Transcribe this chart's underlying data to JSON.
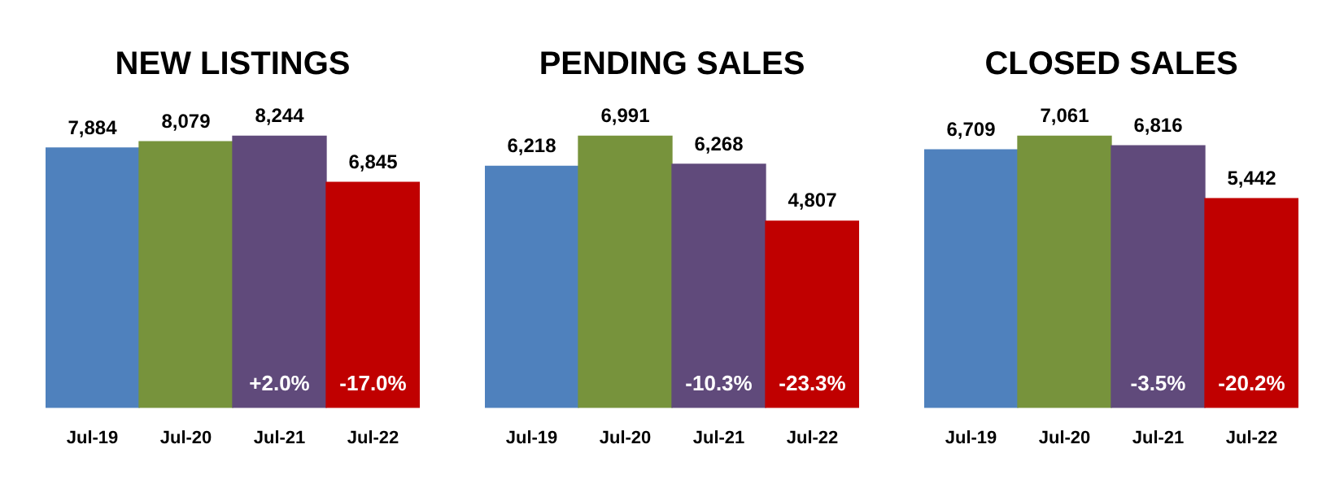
{
  "chart_data": [
    {
      "type": "bar",
      "title": "NEW LISTINGS",
      "categories": [
        "Jul-19",
        "Jul-20",
        "Jul-21",
        "Jul-22"
      ],
      "values": [
        7884,
        8079,
        8244,
        6845
      ],
      "value_labels": [
        "7,884",
        "8,079",
        "8,244",
        "6,845"
      ],
      "colors": [
        "#4f81bd",
        "#77933c",
        "#604a7b",
        "#c00000"
      ],
      "tick_labels": "x",
      "annotations": [
        "+2.0%",
        "-17.0%"
      ]
    },
    {
      "type": "bar",
      "title": "PENDING SALES",
      "categories": [
        "Jul-19",
        "Jul-20",
        "Jul-21",
        "Jul-22"
      ],
      "values": [
        6218,
        6991,
        6268,
        4807
      ],
      "value_labels": [
        "6,218",
        "6,991",
        "6,268",
        "4,807"
      ],
      "colors": [
        "#4f81bd",
        "#77933c",
        "#604a7b",
        "#c00000"
      ],
      "tick_labels": "x",
      "annotations": [
        "-10.3%",
        "-23.3%"
      ]
    },
    {
      "type": "bar",
      "title": "CLOSED SALES",
      "categories": [
        "Jul-19",
        "Jul-20",
        "Jul-21",
        "Jul-22"
      ],
      "values": [
        6709,
        7061,
        6816,
        5442
      ],
      "value_labels": [
        "6,709",
        "7,061",
        "6,816",
        "5,442"
      ],
      "colors": [
        "#4f81bd",
        "#77933c",
        "#604a7b",
        "#c00000"
      ],
      "tick_labels": "x",
      "annotations": [
        "-3.5%",
        "-20.2%"
      ]
    }
  ]
}
